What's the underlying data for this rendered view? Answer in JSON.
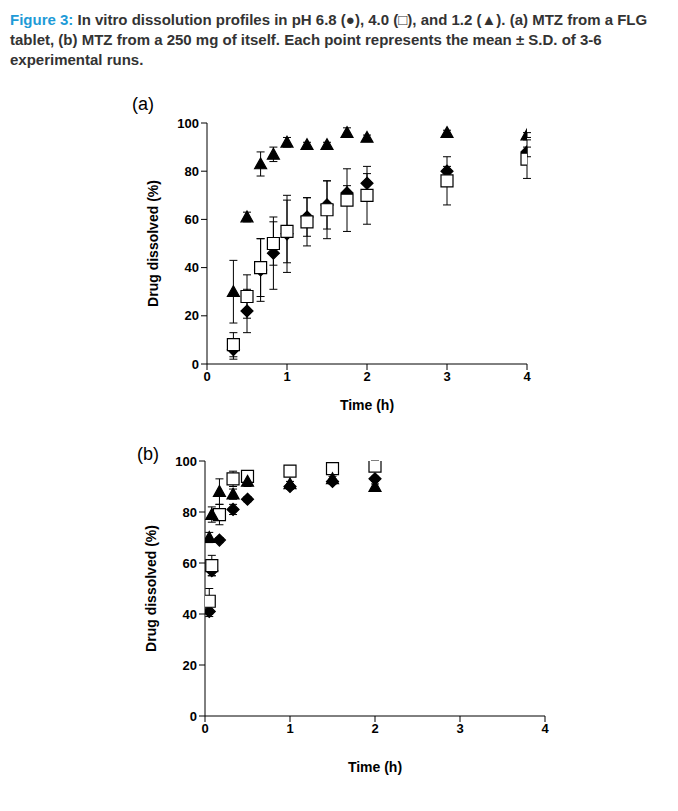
{
  "caption": {
    "label": "Figure 3:",
    "text": "In vitro dissolution profiles in pH 6.8 (●), 4.0 (□), and 1.2 (▲). (a) MTZ from a FLG tablet, (b) MTZ from a 250 mg of itself. Each point represents the mean ± S.D. of 3-6 experimental runs."
  },
  "chart_data": [
    {
      "type": "scatter",
      "title": "(a)",
      "x_label": "Time (h)",
      "y_label": "Drug dissolved (%)",
      "xlim": [
        0,
        4
      ],
      "xticks": [
        0,
        1,
        2,
        3,
        4
      ],
      "ylim": [
        0,
        100
      ],
      "yticks": [
        0,
        20,
        40,
        60,
        80,
        100
      ],
      "x": [
        0.33,
        0.5,
        0.67,
        0.83,
        1,
        1.25,
        1.5,
        1.75,
        2,
        3,
        4
      ],
      "series": [
        {
          "color": "#000000",
          "marker": "diamond",
          "values": [
            6,
            22,
            39,
            46,
            54,
            61,
            66,
            71,
            75,
            80,
            88
          ],
          "errors": [
            4,
            9,
            13,
            15,
            16,
            8,
            10,
            3,
            4,
            2,
            2
          ]
        },
        {
          "color": "#000000",
          "marker": "open_square",
          "values": [
            8,
            28,
            40,
            50,
            55,
            59,
            64,
            68,
            70,
            76,
            85
          ],
          "errors": [
            5,
            9,
            12,
            9,
            13,
            10,
            12,
            13,
            12,
            10,
            8
          ]
        },
        {
          "color": "#000000",
          "marker": "triangle",
          "values": [
            30,
            61,
            83,
            87,
            92,
            91,
            91,
            96,
            94,
            96,
            95
          ],
          "errors": [
            13,
            2,
            5,
            3,
            2,
            1,
            1,
            2,
            1,
            1,
            1
          ]
        }
      ]
    },
    {
      "type": "scatter",
      "title": "(b)",
      "x_label": "Time (h)",
      "y_label": "Drug dissolved (%)",
      "xlim": [
        0,
        4
      ],
      "xticks": [
        0,
        1,
        2,
        3,
        4
      ],
      "ylim": [
        0,
        100
      ],
      "yticks": [
        0,
        20,
        40,
        60,
        80,
        100
      ],
      "x": [
        0.05,
        0.08,
        0.17,
        0.33,
        0.5,
        1,
        1.5,
        2
      ],
      "series": [
        {
          "color": "#000000",
          "marker": "diamond",
          "values": [
            41,
            57,
            69,
            81,
            85,
            90,
            92,
            93
          ],
          "errors": [
            2,
            2,
            1,
            2,
            1,
            1,
            1,
            1
          ]
        },
        {
          "color": "#000000",
          "marker": "open_square",
          "values": [
            45,
            59,
            79,
            93,
            94,
            96,
            97,
            98
          ],
          "errors": [
            5,
            4,
            4,
            3,
            2,
            2,
            2,
            2
          ]
        },
        {
          "color": "#000000",
          "marker": "triangle",
          "values": [
            70,
            79,
            88,
            87,
            92,
            91,
            93,
            90
          ],
          "errors": [
            2,
            3,
            5,
            2,
            2,
            1,
            1,
            1
          ]
        }
      ]
    }
  ]
}
